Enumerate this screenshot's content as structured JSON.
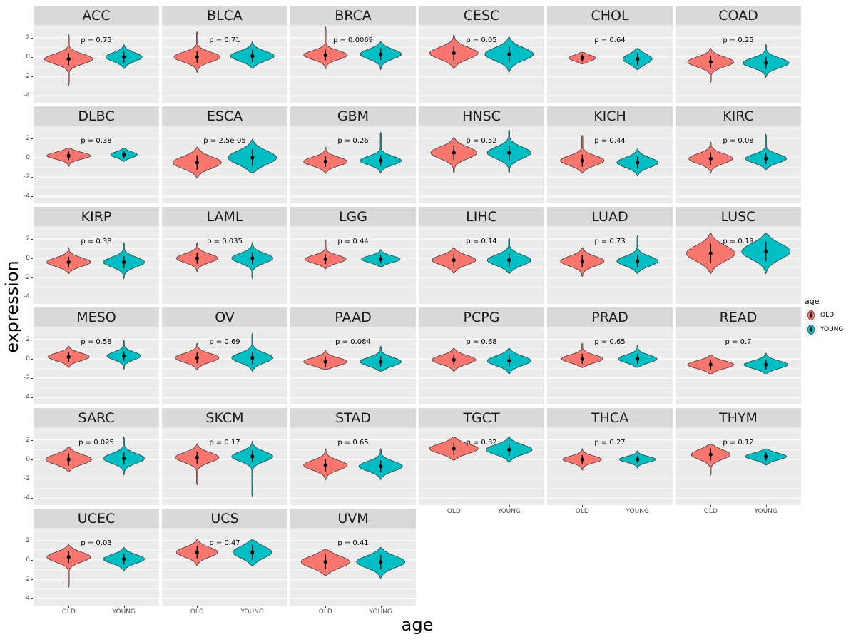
{
  "figure": {
    "y_axis_title": "expression",
    "x_axis_title": "age",
    "background": "#FFFFFF",
    "panel_bg": "#EBEBEB",
    "strip_bg": "#D9D9D9",
    "grid_color": "#FFFFFF"
  },
  "legend": {
    "title": "age",
    "entries": [
      {
        "label": "OLD",
        "color": "#F8766D"
      },
      {
        "label": "YOUNG",
        "color": "#00BFC4"
      }
    ]
  },
  "chart_data": {
    "type": "violin",
    "title": "",
    "xlabel": "age",
    "ylabel": "expression",
    "x_categories": [
      "OLD",
      "YOUNG"
    ],
    "y_ticks": [
      2,
      0,
      -2,
      -4
    ],
    "y_minor_ticks": [
      3,
      1,
      -1,
      -3
    ],
    "ylim": [
      -4.7,
      3.3
    ],
    "series_colors": {
      "OLD": "#F8766D",
      "YOUNG": "#00BFC4"
    },
    "facets": [
      {
        "name": "ACC",
        "p_label": "p = 0.75",
        "groups": {
          "OLD": {
            "center": -0.2,
            "spread": 0.5,
            "min": -2.9,
            "max": 2.3,
            "width": 1.0
          },
          "YOUNG": {
            "center": 0.0,
            "spread": 0.45,
            "min": -1.2,
            "max": 1.3,
            "width": 0.75
          }
        }
      },
      {
        "name": "BLCA",
        "p_label": "p = 0.71",
        "groups": {
          "OLD": {
            "center": 0.0,
            "spread": 0.5,
            "min": -1.6,
            "max": 2.6,
            "width": 0.95
          },
          "YOUNG": {
            "center": 0.1,
            "spread": 0.5,
            "min": -1.2,
            "max": 1.6,
            "width": 0.9
          }
        }
      },
      {
        "name": "BRCA",
        "p_label": "p = 0.0069",
        "groups": {
          "OLD": {
            "center": 0.2,
            "spread": 0.45,
            "min": -1.2,
            "max": 3.1,
            "width": 0.9
          },
          "YOUNG": {
            "center": 0.3,
            "spread": 0.5,
            "min": -1.3,
            "max": 1.6,
            "width": 0.85
          }
        }
      },
      {
        "name": "CESC",
        "p_label": "p = 0.05",
        "groups": {
          "OLD": {
            "center": 0.4,
            "spread": 0.6,
            "min": -1.2,
            "max": 2.3,
            "width": 1.0
          },
          "YOUNG": {
            "center": 0.3,
            "spread": 0.65,
            "min": -1.6,
            "max": 2.1,
            "width": 1.0
          }
        }
      },
      {
        "name": "CHOL",
        "p_label": "p = 0.64",
        "groups": {
          "OLD": {
            "center": -0.1,
            "spread": 0.3,
            "min": -0.7,
            "max": 0.5,
            "width": 0.55
          },
          "YOUNG": {
            "center": -0.2,
            "spread": 0.5,
            "min": -1.3,
            "max": 0.9,
            "width": 0.6
          }
        }
      },
      {
        "name": "COAD",
        "p_label": "p = 0.25",
        "groups": {
          "OLD": {
            "center": -0.5,
            "spread": 0.5,
            "min": -2.6,
            "max": 0.9,
            "width": 0.95
          },
          "YOUNG": {
            "center": -0.6,
            "spread": 0.5,
            "min": -2.1,
            "max": 1.3,
            "width": 0.95
          }
        }
      },
      {
        "name": "DLBC",
        "p_label": "p = 0.38",
        "groups": {
          "OLD": {
            "center": 0.2,
            "spread": 0.35,
            "min": -0.9,
            "max": 1.0,
            "width": 0.9
          },
          "YOUNG": {
            "center": 0.3,
            "spread": 0.3,
            "min": -0.4,
            "max": 1.0,
            "width": 0.55
          }
        }
      },
      {
        "name": "ESCA",
        "p_label": "p = 2.5e-05",
        "groups": {
          "OLD": {
            "center": -0.5,
            "spread": 0.6,
            "min": -2.1,
            "max": 1.1,
            "width": 1.0
          },
          "YOUNG": {
            "center": 0.0,
            "spread": 0.7,
            "min": -1.6,
            "max": 1.9,
            "width": 1.0
          }
        }
      },
      {
        "name": "GBM",
        "p_label": "p = 0.26",
        "groups": {
          "OLD": {
            "center": -0.4,
            "spread": 0.45,
            "min": -1.6,
            "max": 1.1,
            "width": 0.9
          },
          "YOUNG": {
            "center": -0.3,
            "spread": 0.45,
            "min": -1.6,
            "max": 2.6,
            "width": 0.85
          }
        }
      },
      {
        "name": "HNSC",
        "p_label": "p = 0.52",
        "groups": {
          "OLD": {
            "center": 0.5,
            "spread": 0.6,
            "min": -1.6,
            "max": 2.1,
            "width": 0.95
          },
          "YOUNG": {
            "center": 0.5,
            "spread": 0.6,
            "min": -1.6,
            "max": 2.9,
            "width": 0.9
          }
        }
      },
      {
        "name": "KICH",
        "p_label": "p = 0.44",
        "groups": {
          "OLD": {
            "center": -0.3,
            "spread": 0.5,
            "min": -1.6,
            "max": 2.3,
            "width": 0.9
          },
          "YOUNG": {
            "center": -0.5,
            "spread": 0.5,
            "min": -1.9,
            "max": 0.9,
            "width": 0.85
          }
        }
      },
      {
        "name": "KIRC",
        "p_label": "p = 0.08",
        "groups": {
          "OLD": {
            "center": -0.1,
            "spread": 0.5,
            "min": -1.6,
            "max": 1.6,
            "width": 0.9
          },
          "YOUNG": {
            "center": -0.1,
            "spread": 0.45,
            "min": -1.3,
            "max": 2.4,
            "width": 0.85
          }
        }
      },
      {
        "name": "KIRP",
        "p_label": "p = 0.38",
        "groups": {
          "OLD": {
            "center": -0.4,
            "spread": 0.45,
            "min": -1.6,
            "max": 1.1,
            "width": 0.9
          },
          "YOUNG": {
            "center": -0.4,
            "spread": 0.5,
            "min": -2.1,
            "max": 1.6,
            "width": 0.85
          }
        }
      },
      {
        "name": "LAML",
        "p_label": "p = 0.035",
        "groups": {
          "OLD": {
            "center": 0.0,
            "spread": 0.45,
            "min": -1.4,
            "max": 1.6,
            "width": 0.85
          },
          "YOUNG": {
            "center": 0.0,
            "spread": 0.5,
            "min": -2.1,
            "max": 1.6,
            "width": 0.85
          }
        }
      },
      {
        "name": "LGG",
        "p_label": "p = 0.44",
        "groups": {
          "OLD": {
            "center": -0.1,
            "spread": 0.4,
            "min": -1.1,
            "max": 1.9,
            "width": 0.85
          },
          "YOUNG": {
            "center": -0.1,
            "spread": 0.35,
            "min": -0.9,
            "max": 0.9,
            "width": 0.8
          }
        }
      },
      {
        "name": "LIHC",
        "p_label": "p = 0.14",
        "groups": {
          "OLD": {
            "center": -0.2,
            "spread": 0.5,
            "min": -1.6,
            "max": 1.1,
            "width": 0.9
          },
          "YOUNG": {
            "center": -0.2,
            "spread": 0.55,
            "min": -1.6,
            "max": 2.1,
            "width": 0.9
          }
        }
      },
      {
        "name": "LUAD",
        "p_label": "p = 0.73",
        "groups": {
          "OLD": {
            "center": -0.3,
            "spread": 0.5,
            "min": -1.9,
            "max": 1.1,
            "width": 0.9
          },
          "YOUNG": {
            "center": -0.3,
            "spread": 0.5,
            "min": -1.6,
            "max": 2.3,
            "width": 0.85
          }
        }
      },
      {
        "name": "LUSC",
        "p_label": "p = 0.19",
        "groups": {
          "OLD": {
            "center": 0.5,
            "spread": 0.8,
            "min": -1.6,
            "max": 2.6,
            "width": 1.0
          },
          "YOUNG": {
            "center": 0.7,
            "spread": 0.8,
            "min": -1.6,
            "max": 2.6,
            "width": 1.0
          }
        }
      },
      {
        "name": "MESO",
        "p_label": "p = 0.58",
        "groups": {
          "OLD": {
            "center": 0.2,
            "spread": 0.4,
            "min": -0.9,
            "max": 1.3,
            "width": 0.85
          },
          "YOUNG": {
            "center": 0.3,
            "spread": 0.4,
            "min": -1.1,
            "max": 1.9,
            "width": 0.7
          }
        }
      },
      {
        "name": "OV",
        "p_label": "p = 0.69",
        "groups": {
          "OLD": {
            "center": 0.1,
            "spread": 0.45,
            "min": -1.1,
            "max": 1.6,
            "width": 0.9
          },
          "YOUNG": {
            "center": 0.1,
            "spread": 0.5,
            "min": -1.3,
            "max": 2.6,
            "width": 0.85
          }
        }
      },
      {
        "name": "PAAD",
        "p_label": "p = 0.084",
        "groups": {
          "OLD": {
            "center": -0.3,
            "spread": 0.4,
            "min": -1.1,
            "max": 0.9,
            "width": 0.9
          },
          "YOUNG": {
            "center": -0.3,
            "spread": 0.45,
            "min": -1.3,
            "max": 1.3,
            "width": 0.85
          }
        }
      },
      {
        "name": "PCPG",
        "p_label": "p = 0.68",
        "groups": {
          "OLD": {
            "center": -0.1,
            "spread": 0.45,
            "min": -1.3,
            "max": 1.1,
            "width": 0.9
          },
          "YOUNG": {
            "center": -0.2,
            "spread": 0.5,
            "min": -1.6,
            "max": 1.1,
            "width": 0.9
          }
        }
      },
      {
        "name": "PRAD",
        "p_label": "p = 0.65",
        "groups": {
          "OLD": {
            "center": 0.0,
            "spread": 0.4,
            "min": -0.9,
            "max": 1.6,
            "width": 0.85
          },
          "YOUNG": {
            "center": 0.0,
            "spread": 0.4,
            "min": -0.9,
            "max": 1.4,
            "width": 0.8
          }
        }
      },
      {
        "name": "READ",
        "p_label": "p = 0.7",
        "groups": {
          "OLD": {
            "center": -0.6,
            "spread": 0.4,
            "min": -1.6,
            "max": 0.4,
            "width": 0.95
          },
          "YOUNG": {
            "center": -0.6,
            "spread": 0.4,
            "min": -1.6,
            "max": 0.6,
            "width": 0.9
          }
        }
      },
      {
        "name": "SARC",
        "p_label": "p = 0.025",
        "groups": {
          "OLD": {
            "center": 0.0,
            "spread": 0.5,
            "min": -1.3,
            "max": 1.3,
            "width": 0.95
          },
          "YOUNG": {
            "center": 0.1,
            "spread": 0.5,
            "min": -1.6,
            "max": 2.3,
            "width": 0.85
          }
        }
      },
      {
        "name": "SKCM",
        "p_label": "p = 0.17",
        "groups": {
          "OLD": {
            "center": 0.2,
            "spread": 0.5,
            "min": -2.6,
            "max": 1.6,
            "width": 0.9
          },
          "YOUNG": {
            "center": 0.3,
            "spread": 0.5,
            "min": -3.9,
            "max": 1.9,
            "width": 0.85
          }
        }
      },
      {
        "name": "STAD",
        "p_label": "p = 0.65",
        "groups": {
          "OLD": {
            "center": -0.6,
            "spread": 0.5,
            "min": -2.1,
            "max": 1.1,
            "width": 0.9
          },
          "YOUNG": {
            "center": -0.7,
            "spread": 0.5,
            "min": -2.1,
            "max": 1.1,
            "width": 0.9
          }
        }
      },
      {
        "name": "TGCT",
        "p_label": "p = 0.32",
        "groups": {
          "OLD": {
            "center": 1.1,
            "spread": 0.5,
            "min": -0.1,
            "max": 2.3,
            "width": 1.0
          },
          "YOUNG": {
            "center": 1.0,
            "spread": 0.5,
            "min": -0.3,
            "max": 2.3,
            "width": 0.95
          }
        }
      },
      {
        "name": "THCA",
        "p_label": "p = 0.27",
        "groups": {
          "OLD": {
            "center": 0.0,
            "spread": 0.35,
            "min": -1.1,
            "max": 1.1,
            "width": 0.8
          },
          "YOUNG": {
            "center": 0.0,
            "spread": 0.3,
            "min": -0.9,
            "max": 0.9,
            "width": 0.75
          }
        }
      },
      {
        "name": "THYM",
        "p_label": "p = 0.12",
        "groups": {
          "OLD": {
            "center": 0.5,
            "spread": 0.5,
            "min": -1.6,
            "max": 1.6,
            "width": 0.8
          },
          "YOUNG": {
            "center": 0.3,
            "spread": 0.35,
            "min": -0.6,
            "max": 1.1,
            "width": 0.85
          }
        }
      },
      {
        "name": "UCEC",
        "p_label": "p = 0.03",
        "groups": {
          "OLD": {
            "center": 0.3,
            "spread": 0.5,
            "min": -2.8,
            "max": 1.6,
            "width": 0.9
          },
          "YOUNG": {
            "center": 0.1,
            "spread": 0.45,
            "min": -1.1,
            "max": 1.3,
            "width": 0.85
          }
        }
      },
      {
        "name": "UCS",
        "p_label": "p = 0.47",
        "groups": {
          "OLD": {
            "center": 0.8,
            "spread": 0.5,
            "min": -0.6,
            "max": 2.1,
            "width": 0.85
          },
          "YOUNG": {
            "center": 0.8,
            "spread": 0.6,
            "min": -0.6,
            "max": 2.1,
            "width": 0.8
          }
        }
      },
      {
        "name": "UVM",
        "p_label": "p = 0.41",
        "groups": {
          "OLD": {
            "center": -0.2,
            "spread": 0.6,
            "min": -1.6,
            "max": 1.1,
            "width": 1.0
          },
          "YOUNG": {
            "center": -0.2,
            "spread": 0.6,
            "min": -1.9,
            "max": 1.3,
            "width": 1.0
          }
        }
      }
    ]
  }
}
